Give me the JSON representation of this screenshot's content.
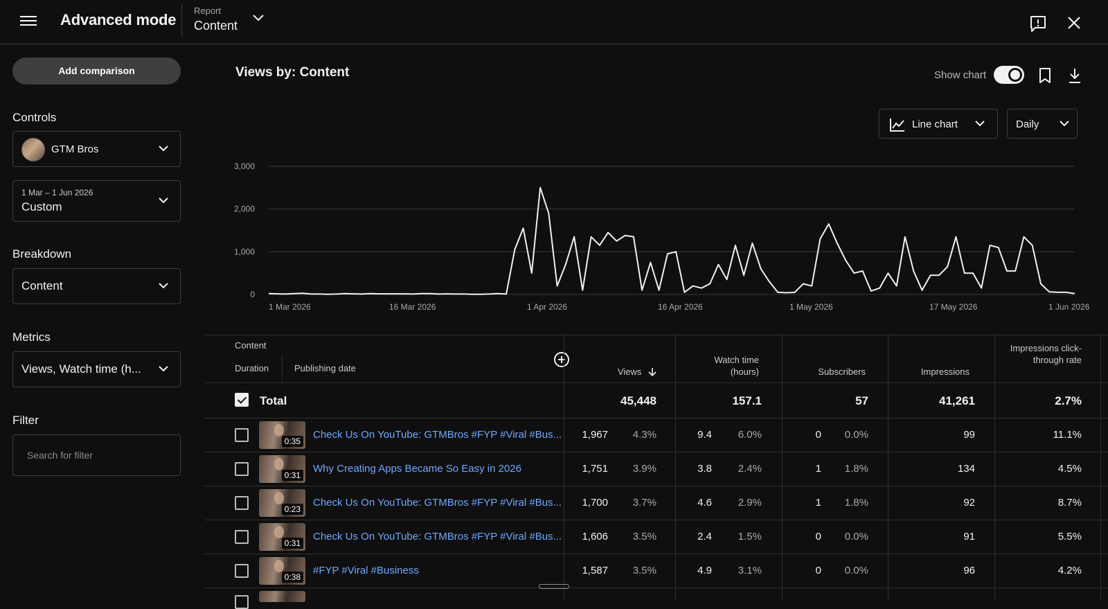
{
  "header": {
    "title": "Advanced mode",
    "report_small": "Report",
    "report_value": "Content"
  },
  "sidebar": {
    "add_comparison": "Add comparison",
    "controls_label": "Controls",
    "channel_name": "GTM Bros",
    "date_range": "1 Mar – 1 Jun 2026",
    "date_mode": "Custom",
    "breakdown_label": "Breakdown",
    "breakdown_value": "Content",
    "metrics_label": "Metrics",
    "metrics_value": "Views, Watch time (h...",
    "filter_label": "Filter",
    "filter_placeholder": "Search for filter"
  },
  "chart_panel": {
    "title": "Views by: Content",
    "show_chart_label": "Show chart",
    "show_chart_on": true,
    "chart_type": "Line chart",
    "granularity": "Daily"
  },
  "chart_data": {
    "type": "line",
    "ylim": [
      0,
      3000
    ],
    "yticks": [
      "3,000",
      "2,000",
      "1,000",
      "0"
    ],
    "xticks": [
      "1 Mar 2026",
      "16 Mar 2026",
      "1 Apr 2026",
      "16 Apr 2026",
      "1 May 2026",
      "17 May 2026",
      "1 Jun 2026"
    ],
    "x_start": "1 Mar 2026",
    "x_end": "1 Jun 2026",
    "series": [
      {
        "values": [
          20,
          15,
          10,
          20,
          30,
          10,
          10,
          5,
          10,
          20,
          15,
          10,
          20,
          15,
          15,
          15,
          15,
          10,
          20,
          20,
          10,
          15,
          10,
          10,
          5,
          5,
          10,
          20,
          10,
          1050,
          1550,
          500,
          2500,
          1900,
          200,
          700,
          1350,
          100,
          1350,
          1150,
          1450,
          1250,
          1380,
          1350,
          100,
          750,
          100,
          950,
          1000,
          50,
          200,
          150,
          250,
          700,
          350,
          1150,
          450,
          1200,
          600,
          300,
          50,
          40,
          50,
          250,
          200,
          1300,
          1650,
          1200,
          800,
          500,
          550,
          80,
          150,
          500,
          200,
          1350,
          550,
          100,
          450,
          450,
          650,
          1350,
          500,
          500,
          150,
          1150,
          1100,
          550,
          550,
          1350,
          1150,
          250,
          60,
          50,
          50,
          20
        ]
      }
    ]
  },
  "table": {
    "headers": {
      "content": "Content",
      "duration": "Duration",
      "publishing_date": "Publishing date",
      "views": "Views",
      "watch_time": "Watch time (hours)",
      "subscribers": "Subscribers",
      "impressions": "Impressions",
      "ctr": "Impressions click-through rate"
    },
    "total": {
      "label": "Total",
      "views": "45,448",
      "watch_time": "157.1",
      "subscribers": "57",
      "impressions": "41,261",
      "ctr": "2.7%"
    },
    "rows": [
      {
        "duration": "0:35",
        "title": "Check Us On YouTube: GTMBros #FYP #Viral #Bus...",
        "views": "1,967",
        "views_pct": "4.3%",
        "watch": "9.4",
        "watch_pct": "6.0%",
        "subs": "0",
        "subs_pct": "0.0%",
        "impr": "99",
        "ctr": "11.1%"
      },
      {
        "duration": "0:31",
        "title": "Why Creating Apps Became So Easy in 2026",
        "views": "1,751",
        "views_pct": "3.9%",
        "watch": "3.8",
        "watch_pct": "2.4%",
        "subs": "1",
        "subs_pct": "1.8%",
        "impr": "134",
        "ctr": "4.5%"
      },
      {
        "duration": "0:23",
        "title": "Check Us On YouTube: GTMBros #FYP #Viral #Bus...",
        "views": "1,700",
        "views_pct": "3.7%",
        "watch": "4.6",
        "watch_pct": "2.9%",
        "subs": "1",
        "subs_pct": "1.8%",
        "impr": "92",
        "ctr": "8.7%"
      },
      {
        "duration": "0:31",
        "title": "Check Us On YouTube: GTMBros #FYP #Viral #Bus...",
        "views": "1,606",
        "views_pct": "3.5%",
        "watch": "2.4",
        "watch_pct": "1.5%",
        "subs": "0",
        "subs_pct": "0.0%",
        "impr": "91",
        "ctr": "5.5%"
      },
      {
        "duration": "0:38",
        "title": "#FYP #Viral #Business",
        "views": "1,587",
        "views_pct": "3.5%",
        "watch": "4.9",
        "watch_pct": "3.1%",
        "subs": "0",
        "subs_pct": "0.0%",
        "impr": "96",
        "ctr": "4.2%"
      }
    ]
  }
}
